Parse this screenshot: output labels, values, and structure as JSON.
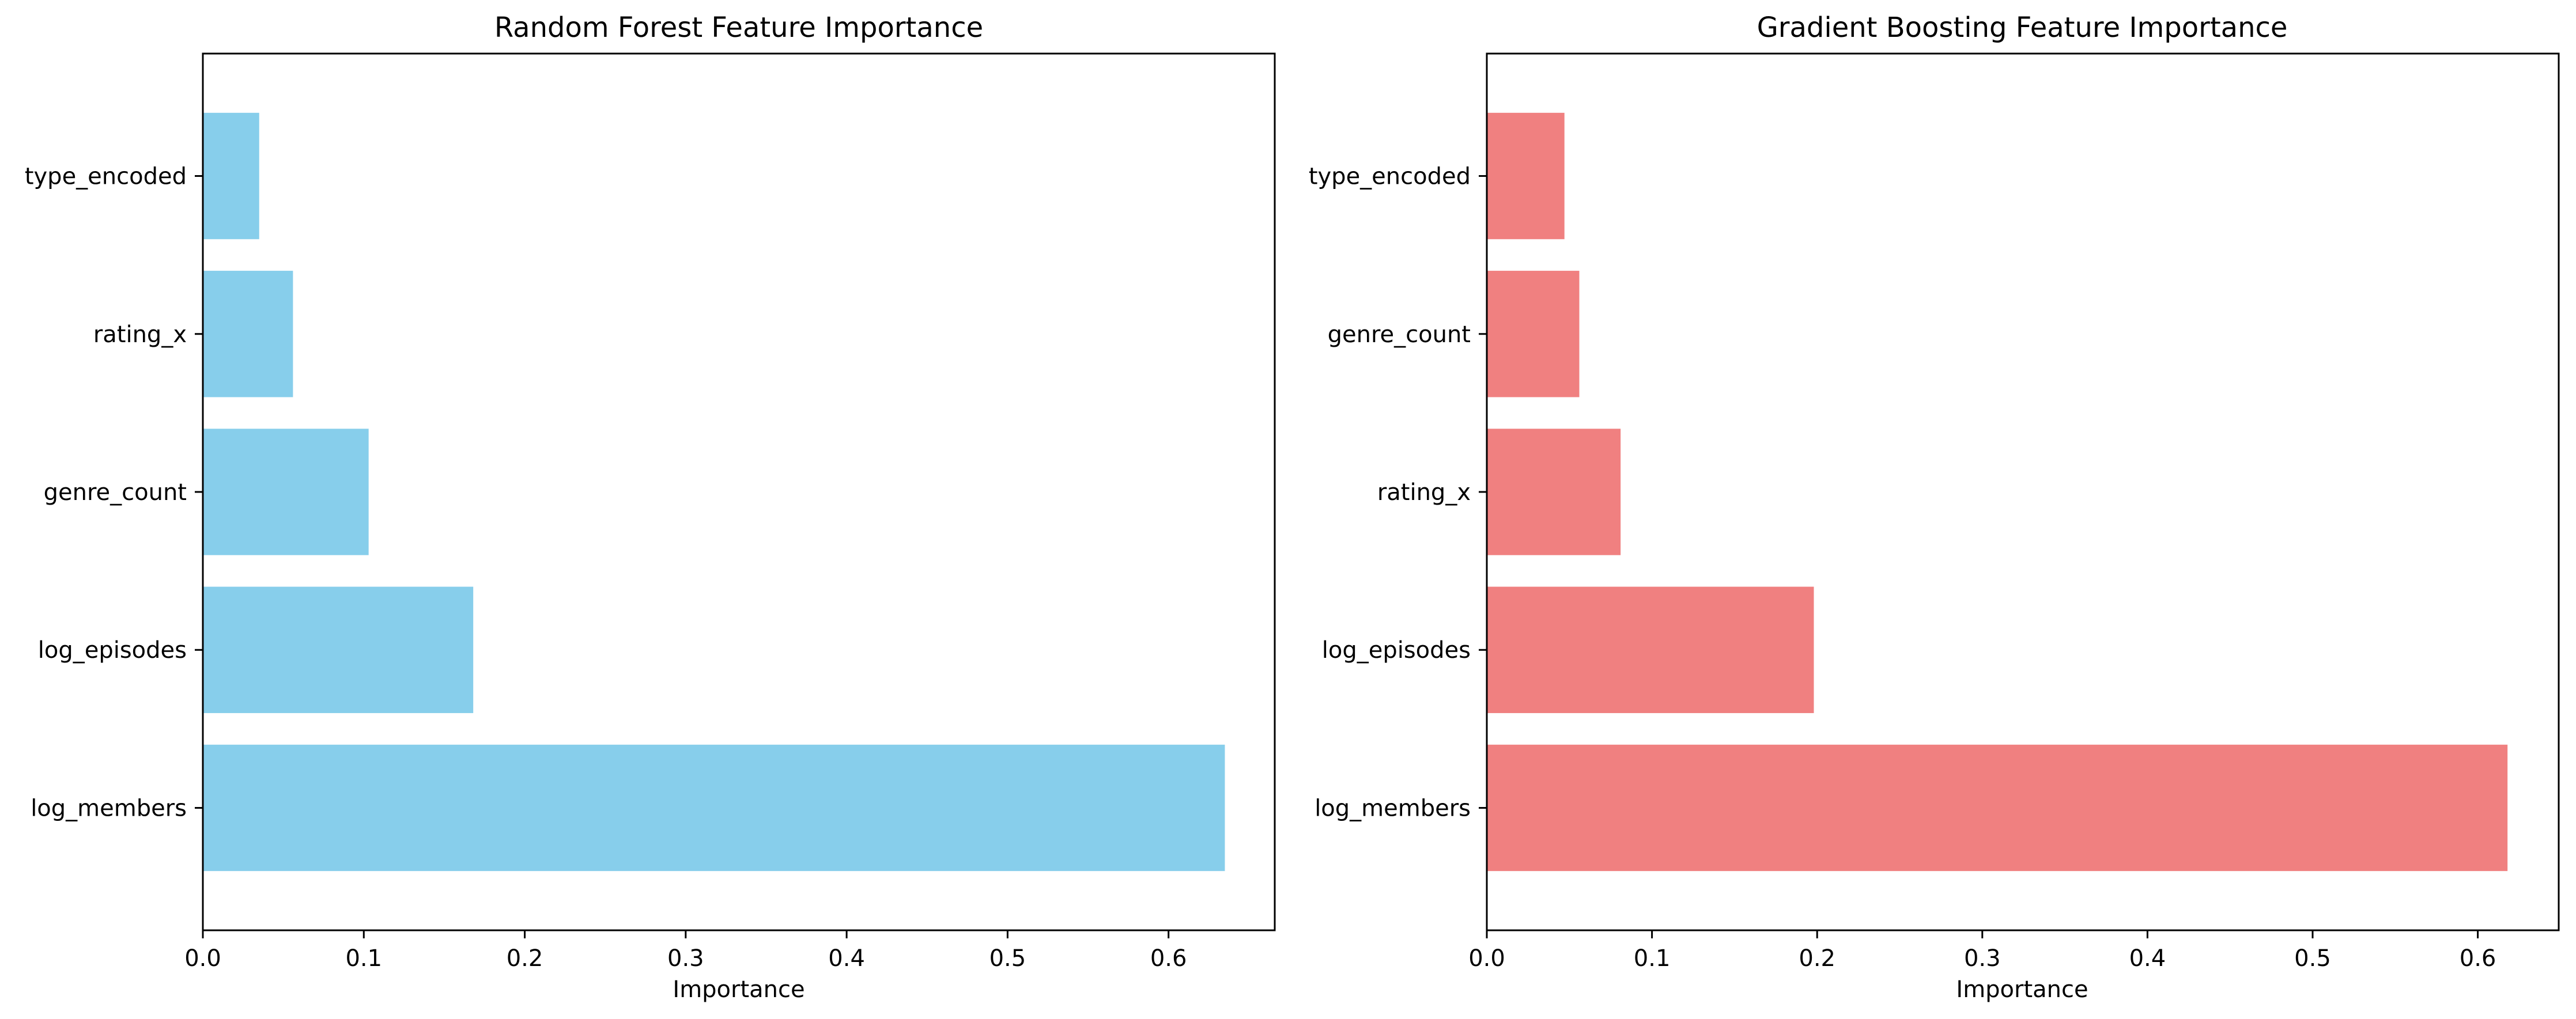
{
  "chart_data": [
    {
      "type": "bar",
      "orientation": "horizontal",
      "title": "Random Forest Feature Importance",
      "xlabel": "Importance",
      "ylabel": "",
      "categories": [
        "log_members",
        "log_episodes",
        "genre_count",
        "rating_x",
        "type_encoded"
      ],
      "values": [
        0.635,
        0.168,
        0.103,
        0.056,
        0.035
      ],
      "xlim": [
        0,
        0.666
      ],
      "xticks": [
        0.0,
        0.1,
        0.2,
        0.3,
        0.4,
        0.5,
        0.6
      ],
      "xtick_labels": [
        "0.0",
        "0.1",
        "0.2",
        "0.3",
        "0.4",
        "0.5",
        "0.6"
      ],
      "color": "#87CEEB",
      "grid": false
    },
    {
      "type": "bar",
      "orientation": "horizontal",
      "title": "Gradient Boosting Feature Importance",
      "xlabel": "Importance",
      "ylabel": "",
      "categories": [
        "log_members",
        "log_episodes",
        "rating_x",
        "genre_count",
        "type_encoded"
      ],
      "values": [
        0.618,
        0.198,
        0.081,
        0.056,
        0.047
      ],
      "xlim": [
        0,
        0.649
      ],
      "xticks": [
        0.0,
        0.1,
        0.2,
        0.3,
        0.4,
        0.5,
        0.6
      ],
      "xtick_labels": [
        "0.0",
        "0.1",
        "0.2",
        "0.3",
        "0.4",
        "0.5",
        "0.6"
      ],
      "color": "#F08080",
      "grid": false
    }
  ]
}
